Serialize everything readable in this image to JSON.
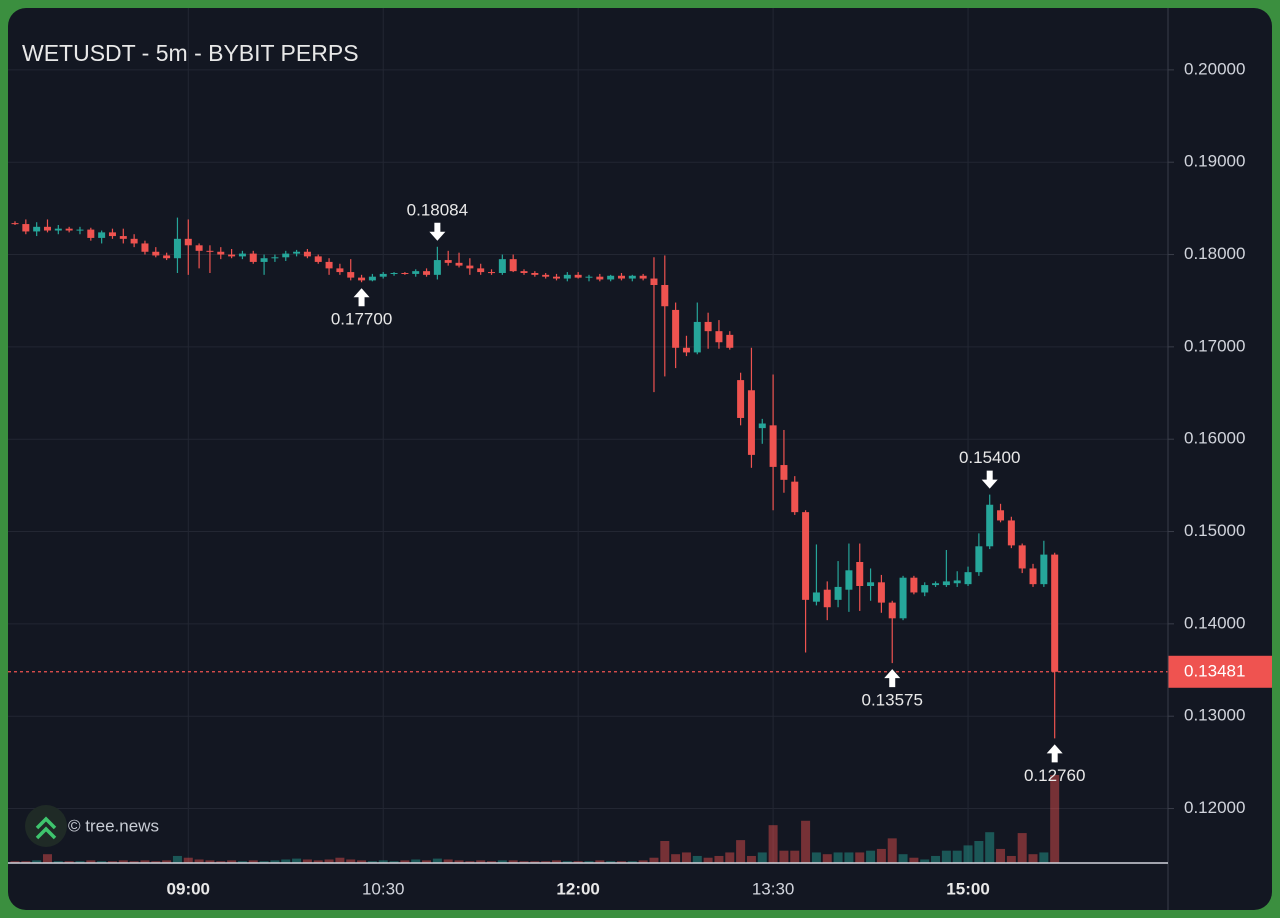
{
  "chart_data": {
    "type": "candlestick",
    "title": "WETUSDT - 5m - BYBIT PERPS",
    "watermark": "© tree.news",
    "up_color": "#26a69a",
    "down_color": "#ef5350",
    "categories": [
      null,
      null,
      null,
      null,
      null,
      null,
      null,
      null,
      null,
      null,
      null,
      null,
      null,
      null,
      null,
      null,
      "09:00",
      null,
      null,
      null,
      null,
      null,
      null,
      null,
      null,
      null,
      null,
      null,
      null,
      null,
      null,
      null,
      null,
      null,
      "10:30",
      null,
      null,
      null,
      null,
      null,
      null,
      null,
      null,
      null,
      null,
      null,
      null,
      null,
      null,
      null,
      null,
      null,
      "12:00",
      null,
      null,
      null,
      null,
      null,
      null,
      null,
      null,
      null,
      null,
      null,
      null,
      null,
      null,
      null,
      null,
      null,
      "13:30",
      null,
      null,
      null,
      null,
      null,
      null,
      null,
      null,
      null,
      null,
      null,
      null,
      null,
      null,
      null,
      null,
      null,
      "15:00",
      null,
      null,
      null,
      null,
      null,
      null,
      null,
      null
    ],
    "open": [
      0.1834,
      0.1833,
      0.1825,
      0.183,
      0.1826,
      0.1828,
      0.1826,
      0.1827,
      0.1818,
      0.1824,
      0.182,
      0.1817,
      0.1812,
      0.1803,
      0.1799,
      0.1796,
      0.1817,
      0.181,
      0.1804,
      0.1803,
      0.18,
      0.1798,
      0.1801,
      0.1792,
      0.1796,
      0.1797,
      0.1801,
      0.1803,
      0.1798,
      0.1792,
      0.1785,
      0.1781,
      0.1775,
      0.1772,
      0.1776,
      0.1779,
      0.178,
      0.1779,
      0.1782,
      0.1778,
      0.1794,
      0.1791,
      0.1788,
      0.1785,
      0.1781,
      0.178,
      0.1795,
      0.1782,
      0.178,
      0.1778,
      0.1776,
      0.1774,
      0.1778,
      0.1775,
      0.1776,
      0.1773,
      0.1777,
      0.1774,
      0.1777,
      0.1774,
      0.1767,
      0.174,
      0.1699,
      0.1694,
      0.1727,
      0.1717,
      0.1713,
      0.1664,
      0.1653,
      0.1612,
      0.1615,
      0.1572,
      0.1554,
      0.1521,
      0.1424,
      0.1437,
      0.1426,
      0.1437,
      0.1467,
      0.1441,
      0.1445,
      0.1423,
      0.1406,
      0.145,
      0.1434,
      0.1442,
      0.1442,
      0.1444,
      0.1443,
      0.1456,
      0.1484,
      0.1523,
      0.1512,
      0.1485,
      0.146,
      0.1443,
      0.1475
    ],
    "high": [
      0.1836,
      0.1838,
      0.1835,
      0.1838,
      0.1832,
      0.183,
      0.183,
      0.1829,
      0.1826,
      0.1828,
      0.1828,
      0.1822,
      0.1815,
      0.1808,
      0.1802,
      0.184,
      0.1838,
      0.1812,
      0.181,
      0.1808,
      0.1806,
      0.1804,
      0.1804,
      0.18,
      0.18,
      0.1804,
      0.1805,
      0.1806,
      0.18,
      0.1796,
      0.179,
      0.1795,
      0.1778,
      0.1779,
      0.1781,
      0.1781,
      0.1781,
      0.1784,
      0.1785,
      0.18084,
      0.1804,
      0.1802,
      0.1796,
      0.179,
      0.1784,
      0.18,
      0.18,
      0.1784,
      0.1782,
      0.178,
      0.1779,
      0.1781,
      0.1781,
      0.1778,
      0.1779,
      0.1778,
      0.178,
      0.1778,
      0.1779,
      0.1797,
      0.1799,
      0.1748,
      0.1712,
      0.1748,
      0.1737,
      0.1729,
      0.1717,
      0.1672,
      0.1699,
      0.1622,
      0.167,
      0.161,
      0.156,
      0.1523,
      0.1486,
      0.1446,
      0.1468,
      0.1487,
      0.1487,
      0.146,
      0.1453,
      0.1425,
      0.1452,
      0.1452,
      0.1445,
      0.1446,
      0.148,
      0.1457,
      0.1462,
      0.1498,
      0.154,
      0.153,
      0.1516,
      0.1487,
      0.1465,
      0.149,
      0.1477
    ],
    "low": [
      0.1832,
      0.1822,
      0.182,
      0.1824,
      0.1822,
      0.1824,
      0.1822,
      0.1815,
      0.1812,
      0.1817,
      0.1812,
      0.1808,
      0.18,
      0.1797,
      0.1794,
      0.178,
      0.1778,
      0.1785,
      0.178,
      0.1795,
      0.1796,
      0.1795,
      0.179,
      0.1778,
      0.1792,
      0.1793,
      0.1798,
      0.1796,
      0.179,
      0.1778,
      0.1778,
      0.1772,
      0.177,
      0.1771,
      0.1774,
      0.1777,
      0.1778,
      0.1776,
      0.1776,
      0.1773,
      0.1788,
      0.1786,
      0.1778,
      0.1778,
      0.1778,
      0.1778,
      0.1781,
      0.1778,
      0.1776,
      0.1774,
      0.1772,
      0.1771,
      0.1774,
      0.1771,
      0.1771,
      0.1771,
      0.1772,
      0.1771,
      0.1772,
      0.1651,
      0.1668,
      0.1677,
      0.169,
      0.1692,
      0.1698,
      0.1698,
      0.1697,
      0.1615,
      0.1569,
      0.1595,
      0.1523,
      0.1542,
      0.1518,
      0.1369,
      0.142,
      0.1404,
      0.1418,
      0.1413,
      0.1414,
      0.1425,
      0.1412,
      0.13575,
      0.1404,
      0.1432,
      0.143,
      0.144,
      0.144,
      0.144,
      0.1441,
      0.1452,
      0.1481,
      0.151,
      0.1482,
      0.1455,
      0.144,
      0.144,
      0.1276
    ],
    "close": [
      0.1833,
      0.1825,
      0.183,
      0.1826,
      0.1828,
      0.1826,
      0.1827,
      0.1818,
      0.1824,
      0.182,
      0.1817,
      0.1812,
      0.1803,
      0.1799,
      0.1796,
      0.1817,
      0.181,
      0.1804,
      0.1803,
      0.18,
      0.1798,
      0.1801,
      0.1792,
      0.1796,
      0.1797,
      0.1801,
      0.1803,
      0.1798,
      0.1792,
      0.1785,
      0.1781,
      0.1775,
      0.1772,
      0.1776,
      0.1779,
      0.178,
      0.1779,
      0.1782,
      0.1778,
      0.1794,
      0.1791,
      0.1788,
      0.1785,
      0.1781,
      0.178,
      0.1795,
      0.1782,
      0.178,
      0.1778,
      0.1776,
      0.1774,
      0.1778,
      0.1775,
      0.1776,
      0.1773,
      0.1777,
      0.1774,
      0.1777,
      0.1774,
      0.1767,
      0.1744,
      0.1699,
      0.1694,
      0.1727,
      0.1717,
      0.1705,
      0.1699,
      0.1623,
      0.1583,
      0.1617,
      0.157,
      0.1556,
      0.1521,
      0.1426,
      0.1434,
      0.1418,
      0.144,
      0.1458,
      0.1441,
      0.1445,
      0.1423,
      0.1406,
      0.145,
      0.1434,
      0.1442,
      0.1444,
      0.1446,
      0.1447,
      0.1456,
      0.1484,
      0.1529,
      0.1512,
      0.1485,
      0.146,
      0.1443,
      0.1475,
      0.13481
    ],
    "volume": [
      2,
      2,
      3,
      10,
      2,
      2,
      2,
      3,
      2,
      2,
      3,
      2,
      3,
      2,
      3,
      8,
      6,
      4,
      3,
      2,
      3,
      2,
      3,
      2,
      3,
      4,
      5,
      4,
      3,
      4,
      6,
      4,
      3,
      2,
      3,
      2,
      3,
      4,
      3,
      5,
      4,
      3,
      2,
      3,
      2,
      3,
      3,
      2,
      2,
      2,
      3,
      2,
      2,
      2,
      3,
      2,
      2,
      2,
      3,
      6,
      25,
      10,
      12,
      8,
      6,
      8,
      12,
      26,
      8,
      12,
      43,
      14,
      14,
      48,
      12,
      10,
      12,
      12,
      12,
      14,
      16,
      28,
      10,
      6,
      4,
      8,
      14,
      14,
      20,
      25,
      35,
      16,
      8,
      34,
      10,
      12,
      100
    ],
    "ylim": [
      0.1141,
      0.2067
    ],
    "yticks": [
      {
        "value": 0.12,
        "label": "0.12000"
      },
      {
        "value": 0.13,
        "label": "0.13000"
      },
      {
        "value": 0.14,
        "label": "0.14000"
      },
      {
        "value": 0.15,
        "label": "0.15000"
      },
      {
        "value": 0.16,
        "label": "0.16000"
      },
      {
        "value": 0.17,
        "label": "0.17000"
      },
      {
        "value": 0.18,
        "label": "0.18000"
      },
      {
        "value": 0.19,
        "label": "0.19000"
      },
      {
        "value": 0.2,
        "label": "0.20000"
      }
    ],
    "last_price": {
      "value": 0.13481,
      "label": "0.13481"
    },
    "annotations": [
      {
        "value": 0.18084,
        "label": "0.18084"
      },
      {
        "value": 0.177,
        "label": "0.17700"
      },
      {
        "value": 0.13575,
        "label": "0.13575"
      },
      {
        "value": 0.154,
        "label": "0.15400"
      },
      {
        "value": 0.1276,
        "label": "0.12760"
      }
    ],
    "grid": true
  }
}
